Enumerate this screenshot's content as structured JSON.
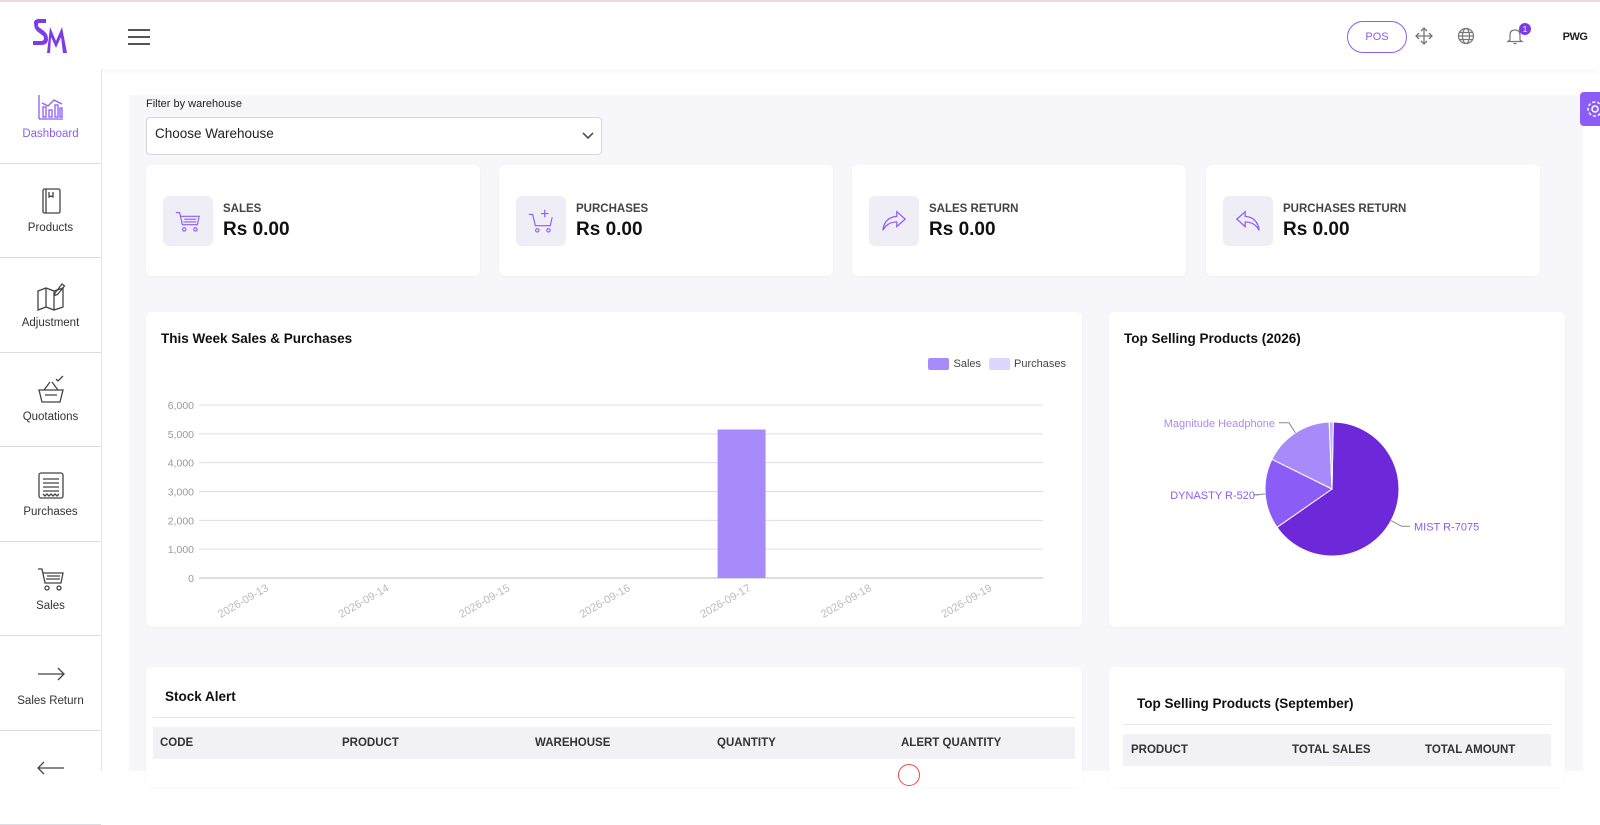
{
  "header": {
    "logo_text": "SM",
    "pos_label": "POS",
    "notification_count": "1",
    "avatar_text": "PWG"
  },
  "sidebar": {
    "items": [
      {
        "label": "Dashboard",
        "icon": "chart-bar-icon",
        "active": true
      },
      {
        "label": "Products",
        "icon": "book-icon"
      },
      {
        "label": "Adjustment",
        "icon": "map-edit-icon"
      },
      {
        "label": "Quotations",
        "icon": "basket-check-icon"
      },
      {
        "label": "Purchases",
        "icon": "receipt-icon"
      },
      {
        "label": "Sales",
        "icon": "cart-icon"
      },
      {
        "label": "Sales Return",
        "icon": "arrow-right-icon"
      },
      {
        "label": "",
        "icon": "arrow-left-icon"
      }
    ]
  },
  "filter": {
    "label": "Filter by warehouse",
    "selected": "Choose Warehouse"
  },
  "stats": [
    {
      "title": "SALES",
      "value": "Rs 0.00",
      "icon": "cart-icon"
    },
    {
      "title": "PURCHASES",
      "value": "Rs 0.00",
      "icon": "cart-plus-icon"
    },
    {
      "title": "SALES RETURN",
      "value": "Rs 0.00",
      "icon": "share-forward-icon"
    },
    {
      "title": "PURCHASES RETURN",
      "value": "Rs 0.00",
      "icon": "reply-back-icon"
    }
  ],
  "weekly_chart": {
    "title": "This Week Sales & Purchases",
    "legend": [
      "Sales",
      "Purchases"
    ],
    "colors": {
      "sales": "#a78bfa",
      "purchases": "#ddd6fe"
    }
  },
  "pie_chart": {
    "title": "Top Selling Products (2026)",
    "colors": [
      "#6d28d9",
      "#8b5cf6",
      "#a78bfa",
      "#c4b5fd"
    ]
  },
  "chart_data": [
    {
      "type": "bar",
      "title": "This Week Sales & Purchases",
      "categories": [
        "2026-09-13",
        "2026-09-14",
        "2026-09-15",
        "2026-09-16",
        "2026-09-17",
        "2026-09-18",
        "2026-09-19"
      ],
      "series": [
        {
          "name": "Sales",
          "values": [
            0,
            0,
            0,
            0,
            5150,
            0,
            0
          ]
        },
        {
          "name": "Purchases",
          "values": [
            0,
            0,
            0,
            0,
            0,
            0,
            0
          ]
        }
      ],
      "yticks": [
        "0",
        "1,000",
        "2,000",
        "3,000",
        "4,000",
        "5,000",
        "6,000"
      ],
      "ylim": [
        0,
        6000
      ],
      "grid": true,
      "legend_position": "top-right"
    },
    {
      "type": "pie",
      "title": "Top Selling Products (2026)",
      "labels": [
        "MIST R-7075",
        "DYNASTY R-520",
        "Magnitude Headphone",
        ""
      ],
      "values": [
        65,
        17,
        17,
        1
      ]
    }
  ],
  "stock_alert": {
    "title": "Stock Alert",
    "columns": [
      "CODE",
      "PRODUCT",
      "WAREHOUSE",
      "QUANTITY",
      "ALERT QUANTITY"
    ]
  },
  "top_month": {
    "title": "Top Selling Products (September)",
    "columns": [
      "PRODUCT",
      "TOTAL SALES",
      "TOTAL AMOUNT"
    ]
  }
}
